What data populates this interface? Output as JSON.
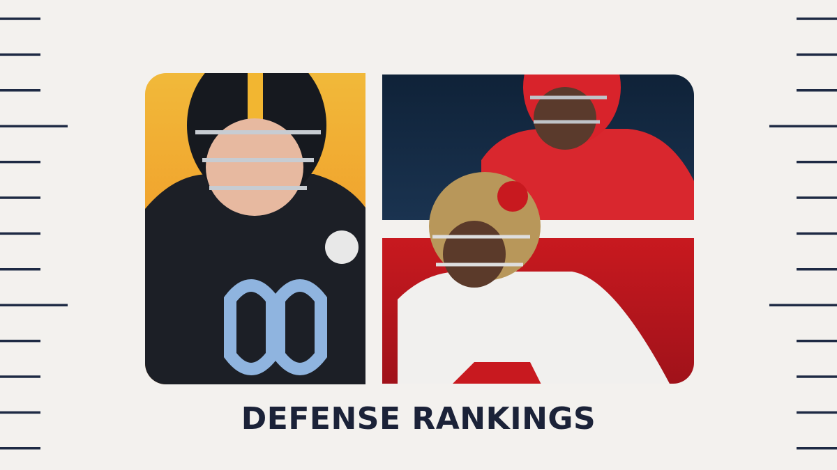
{
  "title": "DEFENSE RANKINGS"
}
